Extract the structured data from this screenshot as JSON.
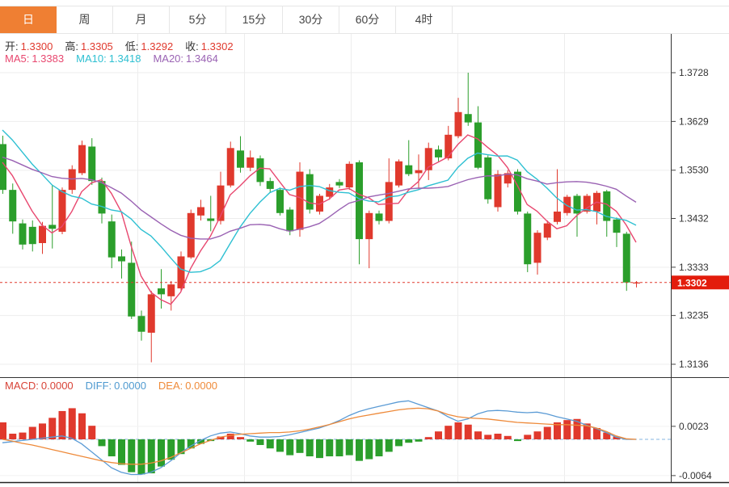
{
  "tabbar": {
    "items": [
      {
        "label": "日",
        "active": true
      },
      {
        "label": "周",
        "active": false
      },
      {
        "label": "月",
        "active": false
      },
      {
        "label": "5分",
        "active": false
      },
      {
        "label": "15分",
        "active": false
      },
      {
        "label": "30分",
        "active": false
      },
      {
        "label": "60分",
        "active": false
      },
      {
        "label": "4时",
        "active": false
      }
    ]
  },
  "legend_ohlc": [
    {
      "label": "开:",
      "value": "1.3300"
    },
    {
      "label": "高:",
      "value": "1.3305"
    },
    {
      "label": "低:",
      "value": "1.3292"
    },
    {
      "label": "收:",
      "value": "1.3302"
    }
  ],
  "legend_ma": [
    {
      "label": "MA5:",
      "value": "1.3383",
      "color": "#e8476f"
    },
    {
      "label": "MA10:",
      "value": "1.3418",
      "color": "#2ec0d2"
    },
    {
      "label": "MA20:",
      "value": "1.3464",
      "color": "#9a62b3"
    }
  ],
  "legend_macd": [
    {
      "label": "MACD:",
      "value": "0.0000",
      "color": "#d84337"
    },
    {
      "label": "DIFF:",
      "value": "0.0000",
      "color": "#4f9ad0"
    },
    {
      "label": "DEA:",
      "value": "0.0000",
      "color": "#ef8b3a"
    }
  ],
  "price_badge": {
    "value": "1.3302",
    "color": "#e31c0c"
  },
  "colors": {
    "up": "#e0392d",
    "down": "#2b9e2b",
    "grid": "#ededed",
    "axis_line": "#333333",
    "tick_text": "#333333",
    "price_line": "#e0392d",
    "macd_zero": "#85b6e0",
    "tab_active_bg": "#ef7f33",
    "ohlc_label": "#333333",
    "ohlc_value": "#e0392d",
    "diff_line": "#5b9bd5",
    "dea_line": "#ee8a3a"
  },
  "chart_data": {
    "type": "candlestick",
    "main": {
      "yticks": [
        1.3728,
        1.3629,
        1.353,
        1.3432,
        1.3333,
        1.3235,
        1.3136
      ],
      "price_line": 1.3302,
      "ma_periods": [
        5,
        10,
        20
      ],
      "ma_seeds": [
        1.356,
        1.3625,
        1.356
      ],
      "ma_colors": [
        "#e8476f",
        "#2ec0d2",
        "#9a62b3"
      ],
      "candles": [
        [
          1.3583,
          1.36,
          1.3482,
          1.349
        ],
        [
          1.349,
          1.3503,
          1.3401,
          1.3426
        ],
        [
          1.3422,
          1.343,
          1.3369,
          1.3379
        ],
        [
          1.3415,
          1.3428,
          1.3365,
          1.338
        ],
        [
          1.3382,
          1.3425,
          1.336,
          1.3417
        ],
        [
          1.3419,
          1.35,
          1.3371,
          1.3411
        ],
        [
          1.3405,
          1.3495,
          1.34,
          1.349
        ],
        [
          1.349,
          1.354,
          1.3482,
          1.3532
        ],
        [
          1.3524,
          1.359,
          1.352,
          1.3581
        ],
        [
          1.3578,
          1.3595,
          1.35,
          1.3508
        ],
        [
          1.3508,
          1.3515,
          1.3422,
          1.3442
        ],
        [
          1.3426,
          1.344,
          1.3331,
          1.3353
        ],
        [
          1.3355,
          1.3369,
          1.331,
          1.3345
        ],
        [
          1.3342,
          1.3385,
          1.3228,
          1.3233
        ],
        [
          1.3234,
          1.3245,
          1.3184,
          1.3202
        ],
        [
          1.32,
          1.3285,
          1.314,
          1.3278
        ],
        [
          1.329,
          1.3329,
          1.3249,
          1.3278
        ],
        [
          1.3274,
          1.3305,
          1.3245,
          1.3298
        ],
        [
          1.329,
          1.3365,
          1.3285,
          1.3355
        ],
        [
          1.3353,
          1.345,
          1.335,
          1.3443
        ],
        [
          1.3438,
          1.347,
          1.3428,
          1.3455
        ],
        [
          1.3432,
          1.3478,
          1.3406,
          1.3427
        ],
        [
          1.3427,
          1.3527,
          1.342,
          1.3499
        ],
        [
          1.3499,
          1.3588,
          1.3495,
          1.3575
        ],
        [
          1.357,
          1.3599,
          1.3525,
          1.3535
        ],
        [
          1.3535,
          1.357,
          1.3528,
          1.3556
        ],
        [
          1.3554,
          1.356,
          1.3498,
          1.3506
        ],
        [
          1.3508,
          1.3515,
          1.3485,
          1.3492
        ],
        [
          1.349,
          1.3495,
          1.3438,
          1.3443
        ],
        [
          1.345,
          1.3455,
          1.3398,
          1.3406
        ],
        [
          1.3409,
          1.3546,
          1.3395,
          1.3527
        ],
        [
          1.3522,
          1.3532,
          1.3442,
          1.345
        ],
        [
          1.3446,
          1.3482,
          1.344,
          1.3478
        ],
        [
          1.3476,
          1.3502,
          1.347,
          1.3495
        ],
        [
          1.3506,
          1.3512,
          1.3494,
          1.3499
        ],
        [
          1.3495,
          1.3548,
          1.349,
          1.3543
        ],
        [
          1.3546,
          1.355,
          1.3339,
          1.339
        ],
        [
          1.339,
          1.3448,
          1.3331,
          1.3443
        ],
        [
          1.3442,
          1.3448,
          1.342,
          1.3427
        ],
        [
          1.3427,
          1.3554,
          1.3422,
          1.3506
        ],
        [
          1.3499,
          1.3552,
          1.3495,
          1.3548
        ],
        [
          1.354,
          1.3591,
          1.3518,
          1.3522
        ],
        [
          1.3524,
          1.3562,
          1.3492,
          1.353
        ],
        [
          1.353,
          1.3586,
          1.351,
          1.3575
        ],
        [
          1.3572,
          1.358,
          1.3548,
          1.3556
        ],
        [
          1.3554,
          1.362,
          1.355,
          1.3602
        ],
        [
          1.3599,
          1.3677,
          1.3595,
          1.3648
        ],
        [
          1.3644,
          1.3728,
          1.362,
          1.3627
        ],
        [
          1.3627,
          1.366,
          1.3532,
          1.3535
        ],
        [
          1.3556,
          1.356,
          1.3462,
          1.3471
        ],
        [
          1.3455,
          1.353,
          1.3446,
          1.3522
        ],
        [
          1.3503,
          1.353,
          1.3495,
          1.3524
        ],
        [
          1.3527,
          1.3532,
          1.344,
          1.3446
        ],
        [
          1.3442,
          1.3446,
          1.3323,
          1.3339
        ],
        [
          1.3342,
          1.3408,
          1.3318,
          1.3403
        ],
        [
          1.3393,
          1.3428,
          1.3388,
          1.3422
        ],
        [
          1.3425,
          1.3532,
          1.342,
          1.3446
        ],
        [
          1.3443,
          1.348,
          1.3438,
          1.3476
        ],
        [
          1.3478,
          1.3482,
          1.3395,
          1.3442
        ],
        [
          1.3446,
          1.3482,
          1.3442,
          1.3478
        ],
        [
          1.3446,
          1.3488,
          1.342,
          1.3484
        ],
        [
          1.3487,
          1.349,
          1.3395,
          1.3427
        ],
        [
          1.343,
          1.3434,
          1.3374,
          1.3403
        ],
        [
          1.3401,
          1.3405,
          1.3285,
          1.3302
        ],
        [
          1.33,
          1.3305,
          1.3292,
          1.3302
        ]
      ]
    },
    "macd": {
      "yticks": [
        0.0023,
        -0.0064
      ],
      "hist": [
        0.003,
        0.001,
        0.0012,
        0.0022,
        0.0028,
        0.0038,
        0.005,
        0.0055,
        0.0046,
        0.0024,
        -0.0012,
        -0.003,
        -0.0045,
        -0.0058,
        -0.0062,
        -0.006,
        -0.0048,
        -0.0036,
        -0.0026,
        -0.0016,
        -0.0008,
        -0.0003,
        0.0005,
        0.001,
        0.0004,
        -0.0004,
        -0.001,
        -0.0016,
        -0.0022,
        -0.0028,
        -0.0024,
        -0.003,
        -0.0033,
        -0.003,
        -0.003,
        -0.0028,
        -0.0038,
        -0.0035,
        -0.003,
        -0.0022,
        -0.0012,
        -0.0006,
        -0.0004,
        0.0004,
        0.0014,
        0.0024,
        0.003,
        0.0026,
        0.0014,
        0.0008,
        0.001,
        0.0006,
        -0.0003,
        0.0008,
        0.0014,
        0.0022,
        0.003,
        0.0034,
        0.0036,
        0.0028,
        0.002,
        0.0012,
        0.0005,
        0.0,
        0.0
      ],
      "diff": [
        -0.0006,
        -0.0004,
        -0.0002,
        0.0,
        0.0002,
        0.0004,
        0.0006,
        0.0002,
        -0.0008,
        -0.0022,
        -0.0036,
        -0.005,
        -0.0058,
        -0.0062,
        -0.0062,
        -0.0058,
        -0.005,
        -0.0038,
        -0.0024,
        -0.0012,
        -0.0002,
        0.0006,
        0.0011,
        0.0013,
        0.001,
        0.0006,
        0.0004,
        0.0004,
        0.0005,
        0.0008,
        0.0012,
        0.0016,
        0.002,
        0.0026,
        0.0033,
        0.0042,
        0.0049,
        0.0054,
        0.0058,
        0.0062,
        0.0066,
        0.0068,
        0.0062,
        0.0056,
        0.005,
        0.004,
        0.0032,
        0.0036,
        0.0045,
        0.005,
        0.0051,
        0.005,
        0.0048,
        0.0047,
        0.0048,
        0.0045,
        0.004,
        0.0036,
        0.0032,
        0.0025,
        0.0019,
        0.0012,
        0.0004,
        0.0,
        0.0
      ],
      "dea": [
        0.0,
        -0.0003,
        -0.0007,
        -0.001,
        -0.0014,
        -0.0018,
        -0.0022,
        -0.0026,
        -0.003,
        -0.0034,
        -0.0038,
        -0.0041,
        -0.0043,
        -0.0044,
        -0.0044,
        -0.0042,
        -0.0038,
        -0.0032,
        -0.0024,
        -0.0016,
        -0.0008,
        -0.0002,
        0.0004,
        0.0007,
        0.0009,
        0.001,
        0.0011,
        0.0012,
        0.0012,
        0.0013,
        0.0015,
        0.0018,
        0.0022,
        0.0026,
        0.0031,
        0.0036,
        0.004,
        0.0043,
        0.0046,
        0.0049,
        0.0052,
        0.0054,
        0.0055,
        0.0054,
        0.005,
        0.0044,
        0.004,
        0.0038,
        0.0037,
        0.0036,
        0.0034,
        0.0032,
        0.003,
        0.0029,
        0.0028,
        0.0027,
        0.0026,
        0.0026,
        0.0025,
        0.0024,
        0.002,
        0.0014,
        0.0006,
        0.0001,
        0.0
      ]
    }
  }
}
